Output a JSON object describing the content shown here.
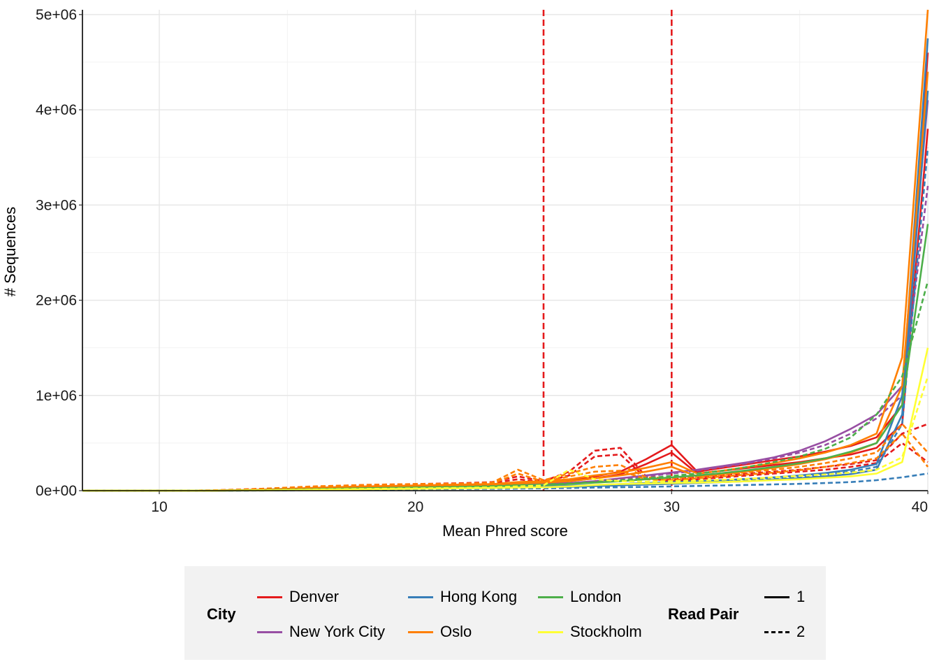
{
  "chart_data": {
    "type": "line",
    "xlabel": "Mean Phred score",
    "ylabel": "# Sequences",
    "xlim": [
      7,
      40
    ],
    "ylim": [
      0,
      5050000
    ],
    "x_ticks": [
      10,
      20,
      30,
      40
    ],
    "x_tick_labels": [
      "10",
      "20",
      "30",
      "40"
    ],
    "y_ticks": [
      0,
      1000000,
      2000000,
      3000000,
      4000000,
      5000000
    ],
    "y_tick_labels": [
      "0e+00",
      "1e+06",
      "2e+06",
      "3e+06",
      "4e+06",
      "5e+06"
    ],
    "vlines": [
      {
        "x": 25,
        "color": "#e41a1c",
        "style": "dashed"
      },
      {
        "x": 30,
        "color": "#e41a1c",
        "style": "dashed"
      }
    ],
    "grid": true,
    "legend_position": "bottom",
    "x": [
      7,
      10,
      12,
      14,
      16,
      18,
      20,
      22,
      23,
      24,
      25,
      26,
      27,
      28,
      29,
      30,
      31,
      32,
      33,
      34,
      35,
      36,
      37,
      38,
      39,
      40
    ],
    "series": [
      {
        "city": "Denver",
        "read_pair": "1",
        "values": [
          0,
          0,
          1000,
          8000,
          25000,
          40000,
          50000,
          60000,
          70000,
          80000,
          90000,
          110000,
          150000,
          200000,
          330000,
          480000,
          200000,
          240000,
          280000,
          320000,
          360000,
          410000,
          470000,
          560000,
          900000,
          4600000
        ]
      },
      {
        "city": "Denver",
        "read_pair": "1",
        "values": [
          0,
          0,
          1000,
          6000,
          20000,
          35000,
          45000,
          55000,
          60000,
          70000,
          80000,
          100000,
          130000,
          170000,
          280000,
          400000,
          180000,
          210000,
          240000,
          270000,
          300000,
          340000,
          380000,
          450000,
          700000,
          3800000
        ]
      },
      {
        "city": "Denver",
        "read_pair": "2",
        "values": [
          0,
          1000,
          2000,
          20000,
          40000,
          60000,
          70000,
          80000,
          90000,
          150000,
          100000,
          200000,
          420000,
          450000,
          150000,
          120000,
          140000,
          160000,
          180000,
          200000,
          220000,
          250000,
          280000,
          320000,
          600000,
          700000
        ]
      },
      {
        "city": "Denver",
        "read_pair": "2",
        "values": [
          0,
          1000,
          2000,
          15000,
          35000,
          50000,
          60000,
          70000,
          80000,
          120000,
          90000,
          160000,
          360000,
          380000,
          130000,
          100000,
          120000,
          140000,
          160000,
          180000,
          200000,
          220000,
          250000,
          290000,
          500000,
          300000
        ]
      },
      {
        "city": "New York City",
        "read_pair": "1",
        "values": [
          0,
          0,
          500,
          5000,
          15000,
          25000,
          35000,
          45000,
          50000,
          60000,
          70000,
          80000,
          100000,
          130000,
          160000,
          190000,
          220000,
          260000,
          300000,
          350000,
          420000,
          520000,
          650000,
          800000,
          1100000,
          4100000
        ]
      },
      {
        "city": "New York City",
        "read_pair": "2",
        "values": [
          0,
          0,
          500,
          5000,
          15000,
          25000,
          35000,
          45000,
          50000,
          60000,
          65000,
          75000,
          90000,
          120000,
          150000,
          180000,
          210000,
          250000,
          290000,
          340000,
          400000,
          480000,
          600000,
          760000,
          1000000,
          3200000
        ]
      },
      {
        "city": "Hong Kong",
        "read_pair": "1",
        "values": [
          0,
          0,
          300,
          3000,
          10000,
          18000,
          25000,
          30000,
          35000,
          40000,
          45000,
          50000,
          60000,
          70000,
          80000,
          90000,
          100000,
          110000,
          125000,
          140000,
          160000,
          185000,
          220000,
          280000,
          1000000,
          4750000
        ]
      },
      {
        "city": "Hong Kong",
        "read_pair": "1",
        "values": [
          0,
          0,
          200,
          2000,
          8000,
          14000,
          20000,
          25000,
          28000,
          32000,
          36000,
          40000,
          48000,
          56000,
          64000,
          72000,
          80000,
          90000,
          100000,
          115000,
          130000,
          150000,
          175000,
          220000,
          800000,
          4200000
        ]
      },
      {
        "city": "Hong Kong",
        "read_pair": "2",
        "values": [
          0,
          0,
          200,
          2500,
          9000,
          16000,
          22000,
          27000,
          30000,
          34000,
          38000,
          42000,
          50000,
          58000,
          66000,
          75000,
          85000,
          95000,
          110000,
          125000,
          145000,
          170000,
          200000,
          250000,
          700000,
          3600000
        ]
      },
      {
        "city": "Hong Kong",
        "read_pair": "2",
        "values": [
          0,
          0,
          100,
          1500,
          6000,
          11000,
          15000,
          18000,
          20000,
          22000,
          25000,
          28000,
          32000,
          36000,
          40000,
          45000,
          50000,
          55000,
          60000,
          66000,
          72000,
          80000,
          90000,
          110000,
          140000,
          180000
        ]
      },
      {
        "city": "Oslo",
        "read_pair": "1",
        "values": [
          0,
          0,
          1000,
          10000,
          30000,
          45000,
          55000,
          65000,
          70000,
          90000,
          100000,
          120000,
          160000,
          190000,
          240000,
          300000,
          180000,
          210000,
          250000,
          290000,
          340000,
          400000,
          480000,
          600000,
          1400000,
          5050000
        ]
      },
      {
        "city": "Oslo",
        "read_pair": "1",
        "values": [
          0,
          0,
          800,
          8000,
          25000,
          38000,
          48000,
          56000,
          62000,
          75000,
          85000,
          100000,
          130000,
          160000,
          200000,
          250000,
          150000,
          175000,
          205000,
          240000,
          280000,
          330000,
          400000,
          500000,
          1100000,
          4400000
        ]
      },
      {
        "city": "Oslo",
        "read_pair": "2",
        "values": [
          0,
          1000,
          2000,
          20000,
          45000,
          60000,
          70000,
          75000,
          85000,
          220000,
          110000,
          180000,
          250000,
          270000,
          140000,
          130000,
          150000,
          170000,
          195000,
          220000,
          250000,
          290000,
          340000,
          400000,
          700000,
          400000
        ]
      },
      {
        "city": "Oslo",
        "read_pair": "2",
        "values": [
          0,
          500,
          1500,
          15000,
          38000,
          52000,
          62000,
          68000,
          75000,
          180000,
          95000,
          150000,
          200000,
          210000,
          120000,
          110000,
          130000,
          150000,
          170000,
          190000,
          215000,
          250000,
          290000,
          340000,
          600000,
          250000
        ]
      },
      {
        "city": "London",
        "read_pair": "1",
        "values": [
          0,
          0,
          500,
          5000,
          15000,
          25000,
          32000,
          40000,
          45000,
          55000,
          60000,
          70000,
          85000,
          100000,
          120000,
          140000,
          160000,
          185000,
          215000,
          250000,
          290000,
          340000,
          410000,
          500000,
          900000,
          2800000
        ]
      },
      {
        "city": "London",
        "read_pair": "2",
        "values": [
          0,
          0,
          600,
          6000,
          16000,
          26000,
          34000,
          42000,
          48000,
          58000,
          64000,
          75000,
          90000,
          110000,
          130000,
          155000,
          180000,
          210000,
          250000,
          300000,
          360000,
          440000,
          560000,
          800000,
          1200000,
          2200000
        ]
      },
      {
        "city": "Stockholm",
        "read_pair": "1",
        "values": [
          0,
          0,
          300,
          3000,
          9000,
          15000,
          20000,
          25000,
          28000,
          32000,
          35000,
          45000,
          60000,
          70000,
          75000,
          80000,
          85000,
          90000,
          100000,
          110000,
          120000,
          135000,
          150000,
          180000,
          300000,
          1500000
        ]
      },
      {
        "city": "Stockholm",
        "read_pair": "2",
        "values": [
          0,
          0,
          400,
          4000,
          11000,
          18000,
          24000,
          30000,
          35000,
          45000,
          55000,
          220000,
          120000,
          100000,
          95000,
          100000,
          105000,
          115000,
          125000,
          140000,
          155000,
          170000,
          190000,
          220000,
          350000,
          1200000
        ]
      }
    ]
  },
  "legend": {
    "city_title": "City",
    "cities": [
      {
        "label": "Denver",
        "color": "#e41a1c"
      },
      {
        "label": "New York City",
        "color": "#984ea3"
      },
      {
        "label": "Hong Kong",
        "color": "#377eb8"
      },
      {
        "label": "Oslo",
        "color": "#ff7f00"
      },
      {
        "label": "London",
        "color": "#4daf4a"
      },
      {
        "label": "Stockholm",
        "color": "#ffff33"
      }
    ],
    "pair_title": "Read Pair",
    "pairs": [
      {
        "label": "1",
        "style": "solid"
      },
      {
        "label": "2",
        "style": "dashed"
      }
    ]
  }
}
